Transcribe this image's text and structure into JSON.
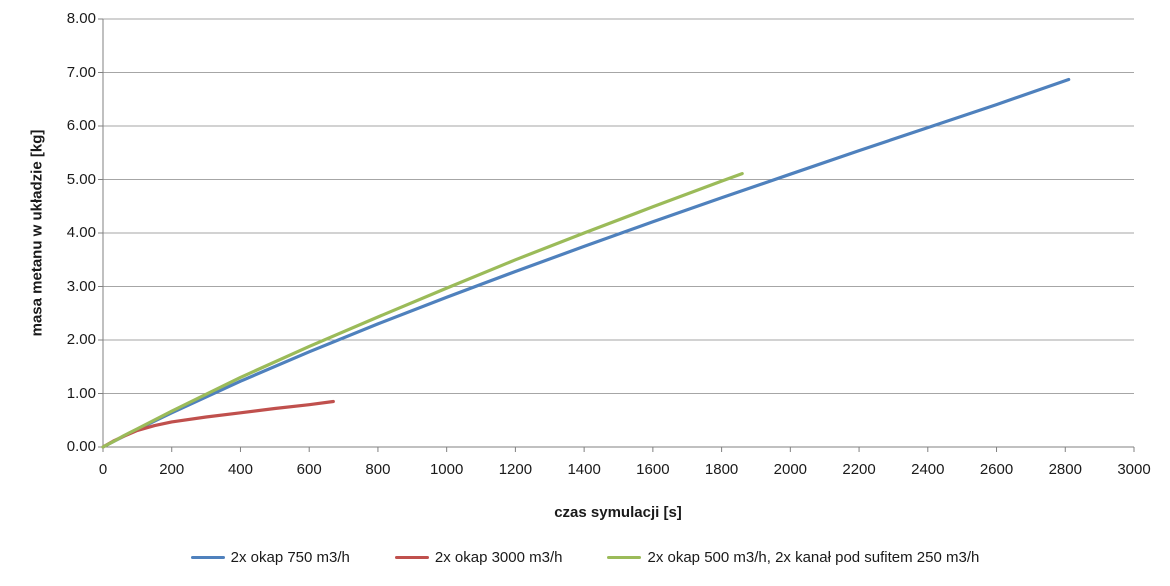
{
  "chart_data": {
    "type": "line",
    "title": "",
    "xlabel": "czas symulacji [s]",
    "ylabel": "masa metanu w układzie [kg]",
    "xlim": [
      0,
      3000
    ],
    "ylim": [
      0,
      8
    ],
    "xticks": [
      0,
      200,
      400,
      600,
      800,
      1000,
      1200,
      1400,
      1600,
      1800,
      2000,
      2200,
      2400,
      2600,
      2800,
      3000
    ],
    "yticks": [
      {
        "v": 0,
        "label": "0.00"
      },
      {
        "v": 1,
        "label": "1.00"
      },
      {
        "v": 2,
        "label": "2.00"
      },
      {
        "v": 3,
        "label": "3.00"
      },
      {
        "v": 4,
        "label": "4.00"
      },
      {
        "v": 5,
        "label": "5.00"
      },
      {
        "v": 6,
        "label": "6.00"
      },
      {
        "v": 7,
        "label": "7.00"
      },
      {
        "v": 8,
        "label": "8.00"
      }
    ],
    "grid": "horizontal-major",
    "legend_position": "bottom",
    "colors": {
      "grid": "#A6A6A6",
      "axis": "#808080",
      "text": "#1A1A1A",
      "background": "#FFFFFF"
    },
    "series": [
      {
        "name": "2x okap 750 m3/h",
        "color": "#4F81BD",
        "points": [
          [
            0,
            0
          ],
          [
            30,
            0.1
          ],
          [
            60,
            0.2
          ],
          [
            100,
            0.33
          ],
          [
            200,
            0.64
          ],
          [
            400,
            1.23
          ],
          [
            600,
            1.78
          ],
          [
            800,
            2.3
          ],
          [
            1000,
            2.8
          ],
          [
            1200,
            3.28
          ],
          [
            1400,
            3.75
          ],
          [
            1600,
            4.21
          ],
          [
            1800,
            4.66
          ],
          [
            2000,
            5.1
          ],
          [
            2200,
            5.54
          ],
          [
            2400,
            5.97
          ],
          [
            2600,
            6.4
          ],
          [
            2810,
            6.87
          ]
        ]
      },
      {
        "name": "2x okap 3000 m3/h",
        "color": "#C0504D",
        "points": [
          [
            0,
            0
          ],
          [
            30,
            0.11
          ],
          [
            60,
            0.2
          ],
          [
            100,
            0.31
          ],
          [
            150,
            0.4
          ],
          [
            200,
            0.47
          ],
          [
            300,
            0.56
          ],
          [
            400,
            0.64
          ],
          [
            500,
            0.72
          ],
          [
            600,
            0.79
          ],
          [
            670,
            0.85
          ]
        ]
      },
      {
        "name": "2x okap 500 m3/h, 2x kanał pod sufitem 250 m3/h",
        "color": "#9BBB59",
        "points": [
          [
            0,
            0
          ],
          [
            30,
            0.1
          ],
          [
            60,
            0.21
          ],
          [
            100,
            0.34
          ],
          [
            200,
            0.67
          ],
          [
            400,
            1.3
          ],
          [
            600,
            1.88
          ],
          [
            800,
            2.43
          ],
          [
            1000,
            2.97
          ],
          [
            1200,
            3.5
          ],
          [
            1400,
            4.0
          ],
          [
            1600,
            4.49
          ],
          [
            1800,
            4.97
          ],
          [
            1860,
            5.11
          ]
        ]
      }
    ]
  }
}
